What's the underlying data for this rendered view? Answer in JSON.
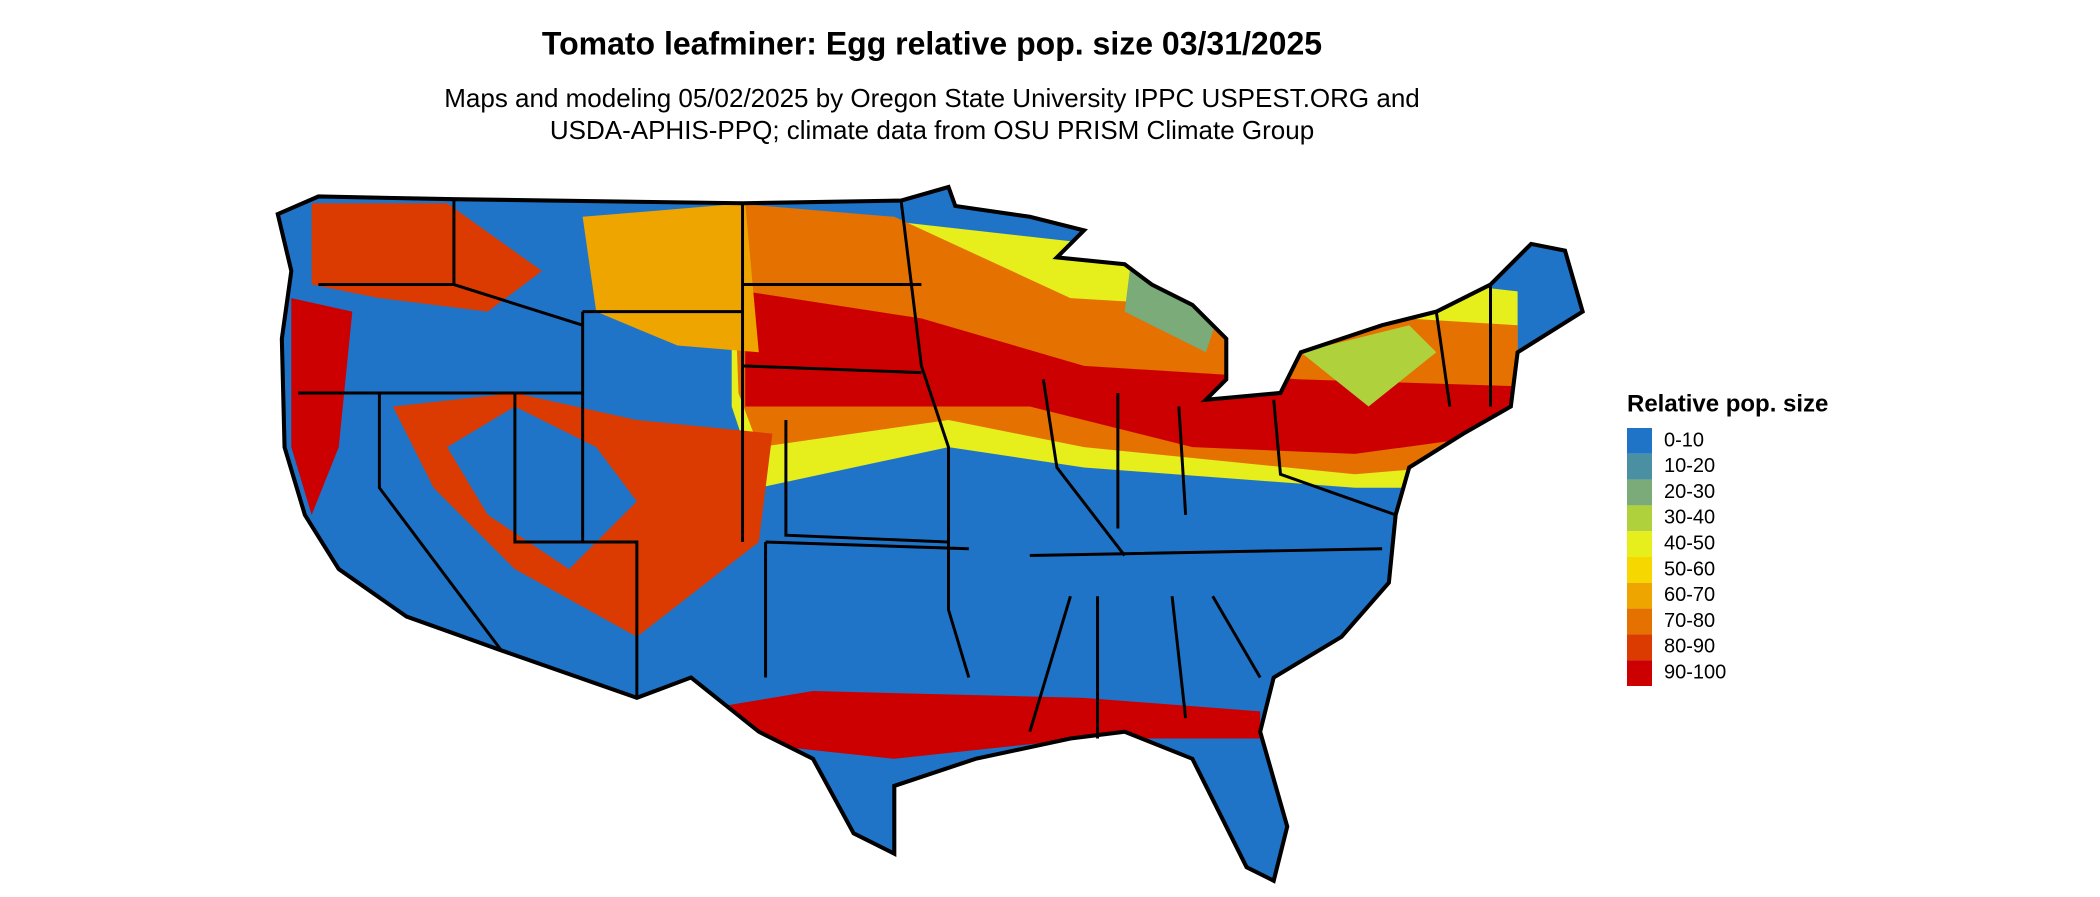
{
  "header": {
    "title": "Tomato leafminer: Egg relative pop. size 03/31/2025",
    "subtitle": [
      "Maps and modeling 05/02/2025 by Oregon State University IPPC USPEST.ORG and",
      "USDA-APHIS-PPQ; climate data from OSU PRISM Climate Group"
    ]
  },
  "legend": {
    "title": "Relative pop. size",
    "items": [
      {
        "label": "0-10",
        "color": "#1f74c8"
      },
      {
        "label": "10-20",
        "color": "#4a8fa2"
      },
      {
        "label": "20-30",
        "color": "#7aab78"
      },
      {
        "label": "30-40",
        "color": "#afd13b"
      },
      {
        "label": "40-50",
        "color": "#e6ee1c"
      },
      {
        "label": "50-60",
        "color": "#f6d800"
      },
      {
        "label": "60-70",
        "color": "#eea500"
      },
      {
        "label": "70-80",
        "color": "#e57100"
      },
      {
        "label": "80-90",
        "color": "#db3b00"
      },
      {
        "label": "90-100",
        "color": "#cc0000"
      }
    ]
  }
}
